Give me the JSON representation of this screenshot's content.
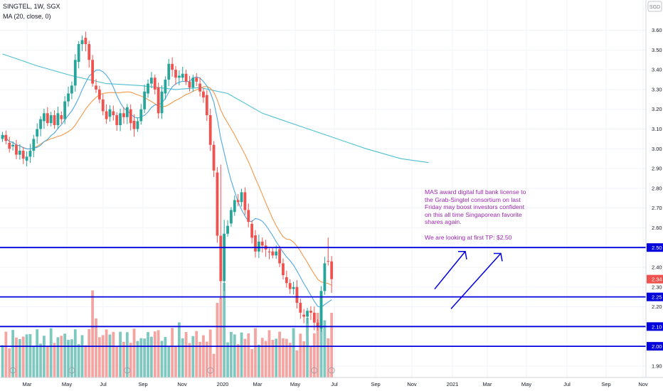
{
  "header": {
    "symbol_line": "SINGTEL, 1W, SGX",
    "indicator_line": "MA (20, close, 0)"
  },
  "price_axis": {
    "currency": "SGD",
    "ticks": [
      "3.60",
      "3.50",
      "3.40",
      "3.30",
      "3.20",
      "3.10",
      "3.00",
      "2.90",
      "2.80",
      "2.70",
      "2.60",
      "2.50",
      "2.40",
      "2.30",
      "2.20",
      "2.10",
      "2.00",
      "1.90"
    ],
    "last_price_label": "2.34"
  },
  "time_axis": {
    "labels": [
      "Mar",
      "May",
      "Jul",
      "Sep",
      "Nov",
      "2020",
      "Mar",
      "May",
      "Jul",
      "Sep",
      "Nov",
      "2021",
      "Mar",
      "May",
      "Jul",
      "Sep",
      "Nov"
    ]
  },
  "annotation": "MAS award digital full bank license to the Grab-Singtel consortium on last Friday may boost investors confident on this all time Singaporean favorite shares again.\n\nWe are looking at first TP: $2.50",
  "colors": {
    "up": "#26a69a",
    "down": "#ef5350",
    "vol_up": "#7fc8c0",
    "vol_down": "#f4a4a1",
    "hline": "#0000dd",
    "ma_fast": "#4fa8df",
    "ma_slow": "#f2994a",
    "ma_long": "#4dc0d0",
    "annotation": "#9b27b0"
  },
  "chart_data": {
    "type": "candlestick",
    "interval": "1W",
    "ylim": [
      1.86,
      3.67
    ],
    "horizontal_levels": [
      {
        "value": 2.5,
        "label": "2.50"
      },
      {
        "value": 2.25,
        "label": "2.25"
      },
      {
        "value": 2.1,
        "label": "2.10"
      },
      {
        "value": 2.0,
        "label": "2.00"
      }
    ],
    "closes": [
      3.07,
      3.04,
      3.0,
      3.02,
      2.97,
      2.99,
      2.95,
      2.96,
      2.99,
      3.05,
      3.1,
      3.15,
      3.18,
      3.13,
      3.17,
      3.12,
      3.18,
      3.15,
      3.24,
      3.28,
      3.32,
      3.45,
      3.53,
      3.55,
      3.53,
      3.45,
      3.33,
      3.3,
      3.25,
      3.19,
      3.15,
      3.2,
      3.17,
      3.12,
      3.18,
      3.16,
      3.21,
      3.13,
      3.1,
      3.14,
      3.2,
      3.29,
      3.33,
      3.36,
      3.3,
      3.18,
      3.29,
      3.35,
      3.43,
      3.4,
      3.36,
      3.37,
      3.38,
      3.34,
      3.31,
      3.36,
      3.34,
      3.29,
      3.26,
      3.17,
      3.02,
      2.89,
      2.56,
      2.33,
      2.57,
      2.61,
      2.69,
      2.74,
      2.73,
      2.78,
      2.69,
      2.63,
      2.55,
      2.48,
      2.53,
      2.51,
      2.49,
      2.48,
      2.46,
      2.48,
      2.42,
      2.36,
      2.32,
      2.29,
      2.3,
      2.22,
      2.17,
      2.15,
      2.18,
      2.17,
      2.12,
      2.1,
      2.28,
      2.42,
      2.43,
      2.34
    ],
    "projection_arrows": [
      {
        "from_price": 2.29,
        "to_price": 2.48
      },
      {
        "from_price": 2.19,
        "to_price": 2.47
      }
    ]
  }
}
